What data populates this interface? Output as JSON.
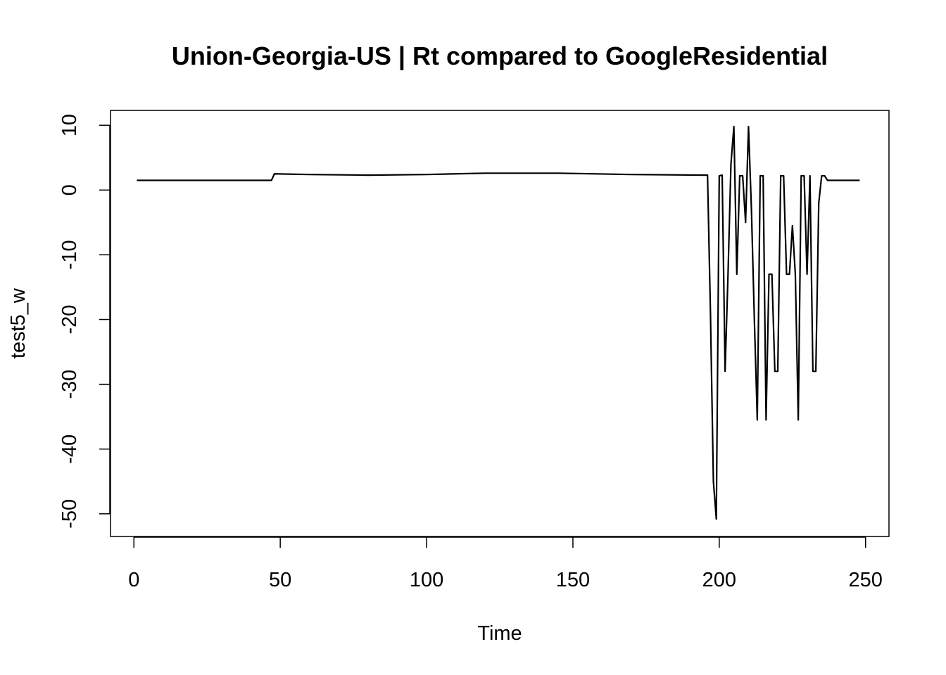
{
  "chart_data": {
    "type": "line",
    "title": "Union-Georgia-US | Rt compared to GoogleResidential",
    "xlabel": "Time",
    "ylabel": "test5_w",
    "xlim": [
      -8,
      258
    ],
    "ylim": [
      -53.5,
      12.3
    ],
    "xticks": [
      0,
      50,
      100,
      150,
      200,
      250
    ],
    "yticks": [
      10,
      0,
      -10,
      -20,
      -30,
      -40,
      -50
    ],
    "grid": false,
    "legend": "none",
    "line_color": "#000000",
    "series": [
      {
        "points": [
          [
            1,
            1.5
          ],
          [
            47,
            1.5
          ],
          [
            48,
            2.5
          ],
          [
            60,
            2.4
          ],
          [
            80,
            2.3
          ],
          [
            100,
            2.4
          ],
          [
            120,
            2.6
          ],
          [
            145,
            2.6
          ],
          [
            170,
            2.4
          ],
          [
            196,
            2.3
          ],
          [
            197,
            -19.0
          ],
          [
            198,
            -45.0
          ],
          [
            199,
            -50.8
          ],
          [
            200,
            2.2
          ],
          [
            201,
            2.3
          ],
          [
            202,
            -28.0
          ],
          [
            203,
            -13.0
          ],
          [
            204,
            4.0
          ],
          [
            205,
            9.8
          ],
          [
            206,
            -13.0
          ],
          [
            207,
            2.2
          ],
          [
            208,
            2.2
          ],
          [
            209,
            -5.0
          ],
          [
            210,
            9.8
          ],
          [
            211,
            -3.0
          ],
          [
            212,
            -20.0
          ],
          [
            213,
            -35.5
          ],
          [
            214,
            2.2
          ],
          [
            215,
            2.2
          ],
          [
            216,
            -35.5
          ],
          [
            217,
            -13.0
          ],
          [
            218,
            -13.0
          ],
          [
            219,
            -28.0
          ],
          [
            220,
            -28.0
          ],
          [
            221,
            2.2
          ],
          [
            222,
            2.2
          ],
          [
            223,
            -13.0
          ],
          [
            224,
            -13.0
          ],
          [
            225,
            -5.5
          ],
          [
            226,
            -13.0
          ],
          [
            227,
            -35.5
          ],
          [
            228,
            2.2
          ],
          [
            229,
            2.2
          ],
          [
            230,
            -13.0
          ],
          [
            231,
            2.2
          ],
          [
            232,
            -28.0
          ],
          [
            233,
            -28.0
          ],
          [
            234,
            -2.0
          ],
          [
            235,
            2.2
          ],
          [
            236,
            2.2
          ],
          [
            237,
            1.5
          ],
          [
            248,
            1.5
          ]
        ]
      }
    ]
  }
}
